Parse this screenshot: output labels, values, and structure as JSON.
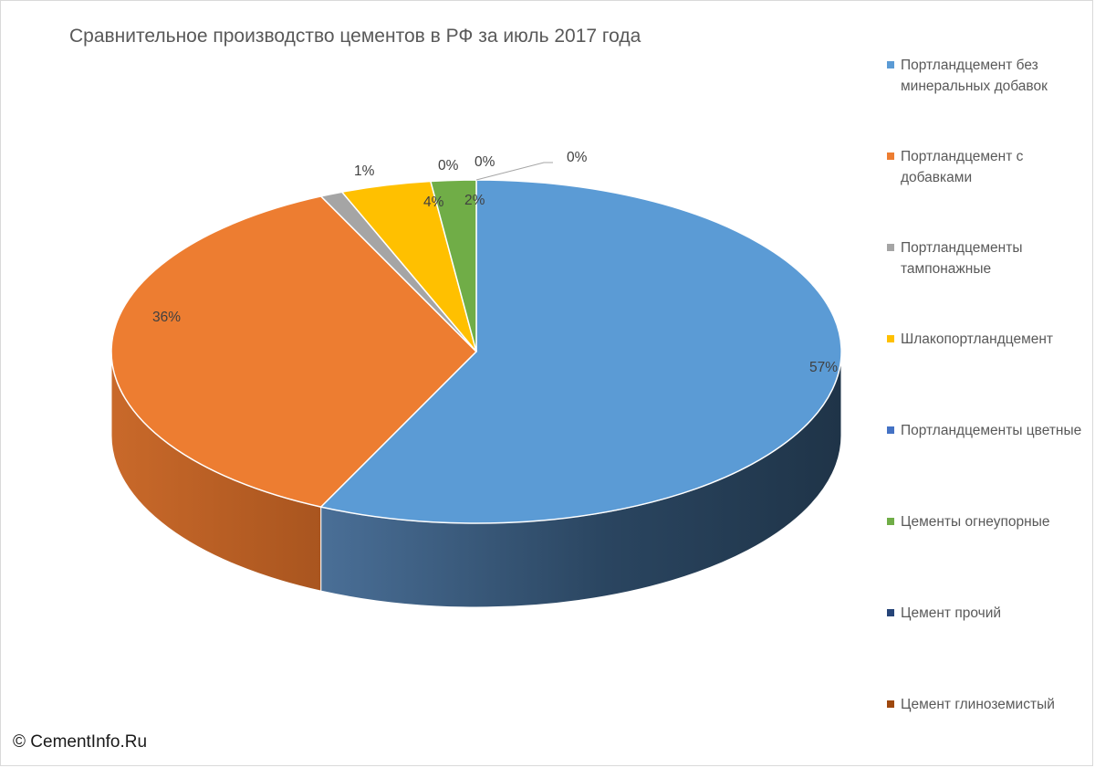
{
  "chart_data": {
    "type": "pie",
    "title": "Сравнительное производство цементов в РФ за июль 2017 года",
    "style": "3d",
    "legend_position": "right",
    "slices": [
      {
        "name": "Портландцемент без минеральных добавок",
        "value": 57,
        "label": "57%",
        "color": "#5B9BD5"
      },
      {
        "name": "Портландцемент с добавками",
        "value": 36,
        "label": "36%",
        "color": "#ED7D31"
      },
      {
        "name": "Портландцементы тампонажные",
        "value": 1,
        "label": "1%",
        "color": "#A5A5A5"
      },
      {
        "name": "Шлакопортландцемент",
        "value": 4,
        "label": "4%",
        "color": "#FFC000"
      },
      {
        "name": "Портландцементы цветные",
        "value": 0,
        "label": "0%",
        "color": "#4472C4"
      },
      {
        "name": "Цементы огнеупорные",
        "value": 2,
        "label": "2%",
        "color": "#70AD47"
      },
      {
        "name": "Цемент прочий",
        "value": 0,
        "label": "0%",
        "color": "#264478"
      },
      {
        "name": "Цемент глиноземистый",
        "value": 0,
        "label": "0%",
        "color": "#9E480E"
      }
    ]
  },
  "footer": {
    "copyright": "© CementInfo.Ru"
  }
}
